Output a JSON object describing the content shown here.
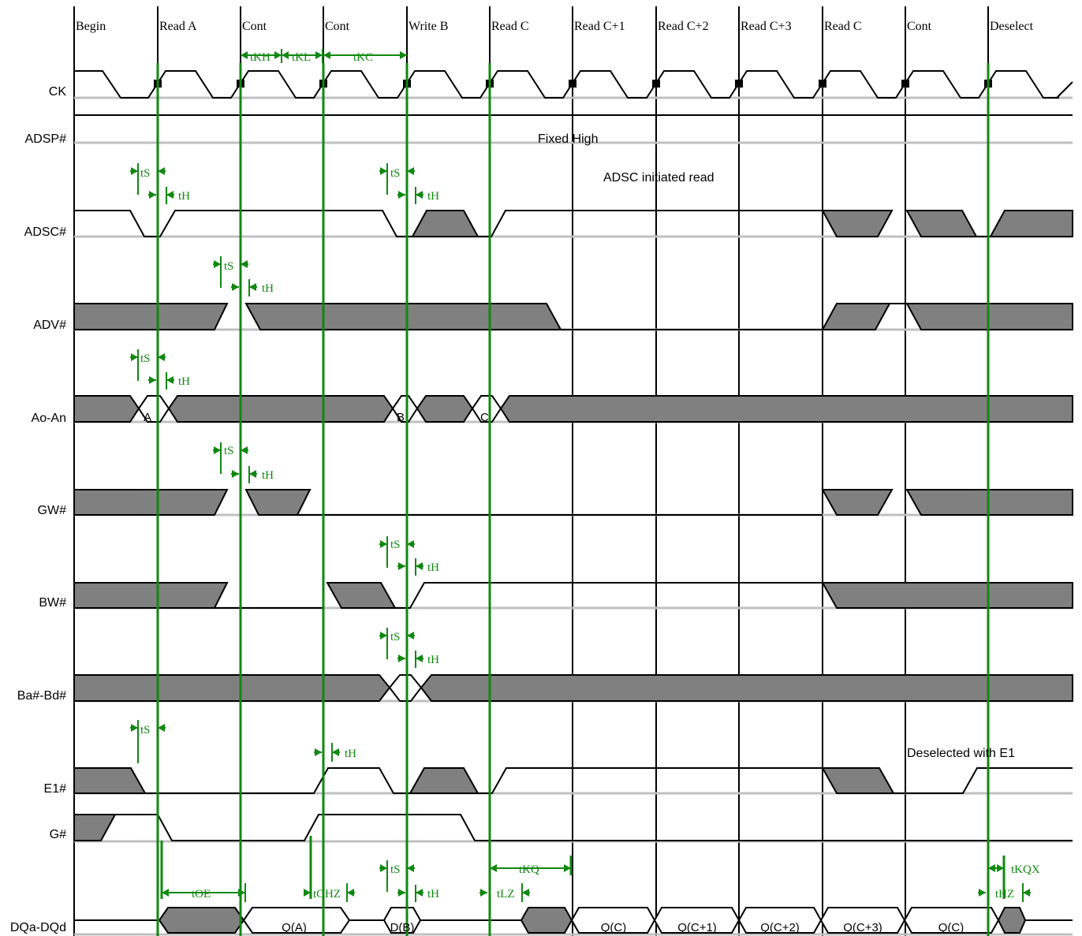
{
  "cycles": [
    "Begin",
    "Read A",
    "Cont",
    "Cont",
    "Write B",
    "Read C",
    "Read C+1",
    "Read C+2",
    "Read C+3",
    "Read C",
    "Cont",
    "Deselect"
  ],
  "signals": [
    "CK",
    "ADSP#",
    "ADSC#",
    "ADV#",
    "Ao-An",
    "GW#",
    "BW#",
    "Ba#-Bd#",
    "E1#",
    "G#",
    "DQa-DQd"
  ],
  "notes": {
    "fixed_high": "Fixed High",
    "adsc_read": "ADSC initiated read",
    "deselect_e1": "Deselected with E1"
  },
  "clock_labels": [
    "tKH",
    "tKL",
    "tKC"
  ],
  "timing_labels": {
    "tS": "tS",
    "tH": "tH",
    "tOE": "tOE",
    "tOHZ": "tOHZ",
    "tKQ": "tKQ",
    "tLZ": "tLZ",
    "tKQX": "tKQX",
    "tHZ": "tHZ"
  },
  "address_values": [
    "A",
    "B",
    "C"
  ],
  "data_values": [
    "Q(A)",
    "D(B)",
    "Q(C)",
    "Q(C+1)",
    "Q(C+2)",
    "Q(C+3)",
    "Q(C)"
  ],
  "colors": {
    "grid": "#000000",
    "signal": "#000000",
    "fill": "#808080",
    "timing": "#118811",
    "baseline": "#c0c0c0"
  }
}
